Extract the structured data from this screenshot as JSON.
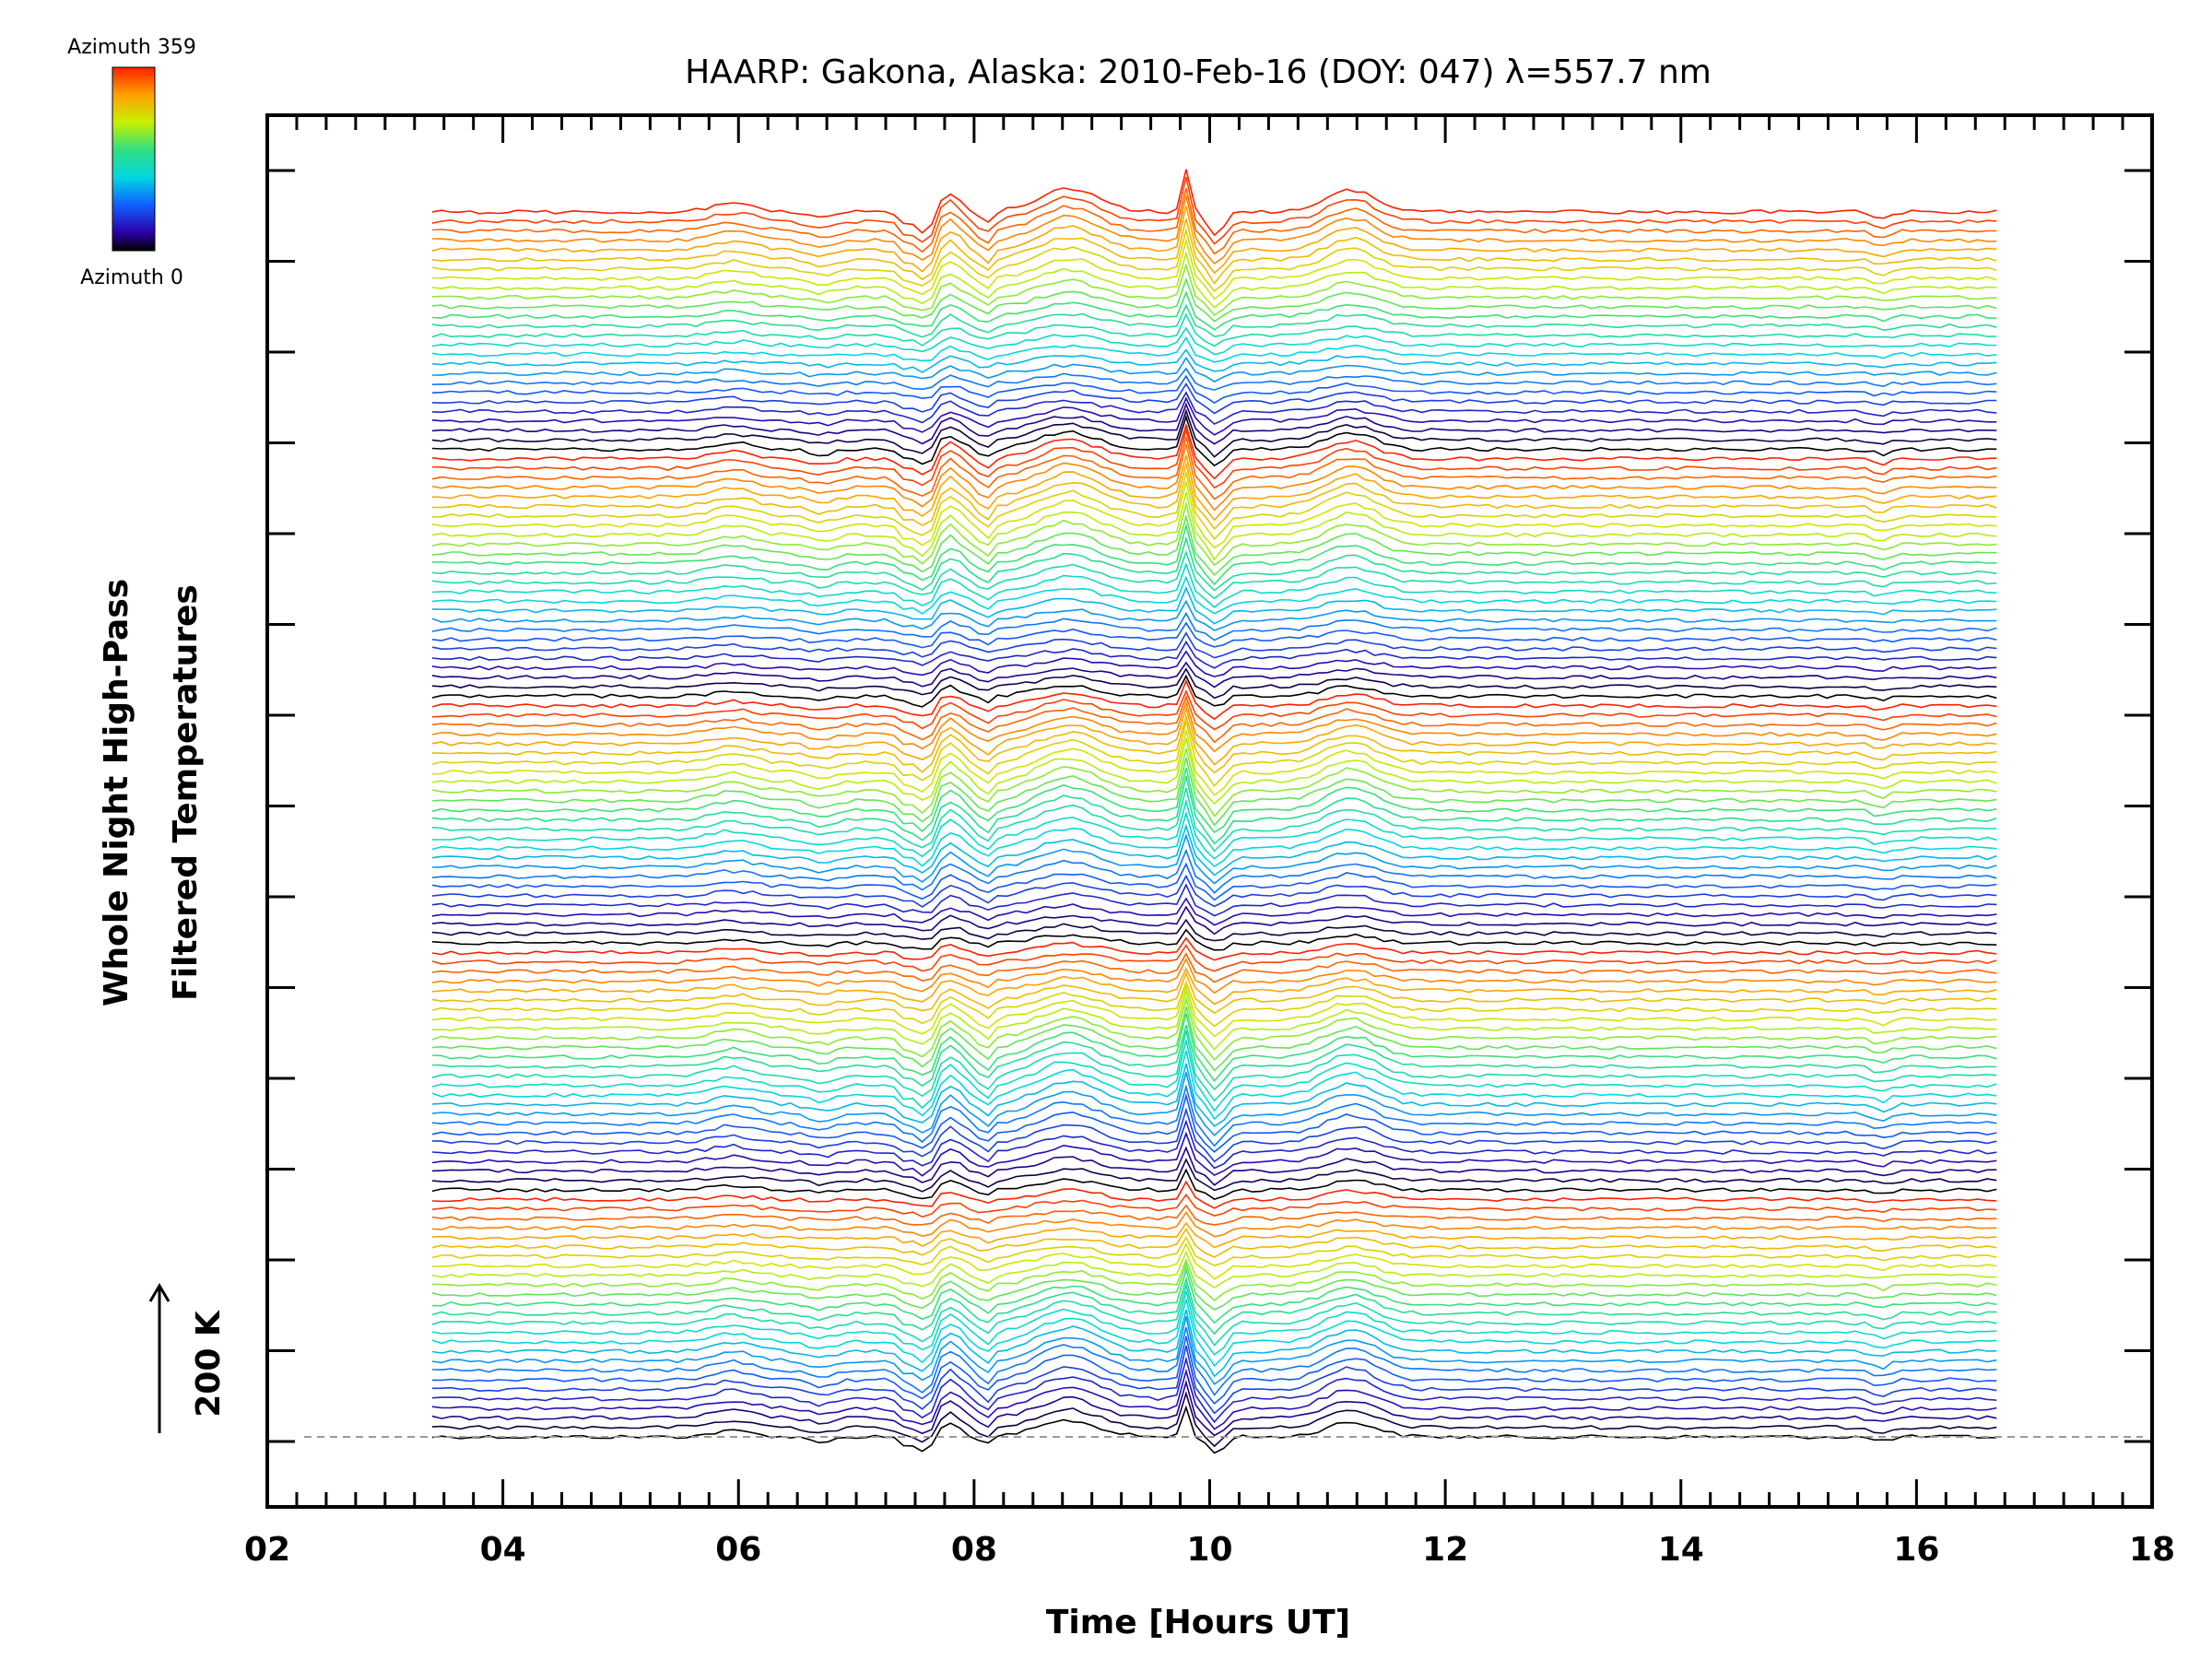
{
  "chart_data": {
    "type": "line",
    "title": "HAARP: Gakona,  Alaska: 2010-Feb-16 (DOY: 047) λ=557.7 nm",
    "xlabel": "Time [Hours UT]",
    "ylabel_line1": "Whole Night High-Pass",
    "ylabel_line2": "Filtered Temperatures",
    "xlim": [
      2,
      18
    ],
    "x_ticks": [
      "02",
      "04",
      "06",
      "08",
      "10",
      "12",
      "14",
      "16",
      "18"
    ],
    "scale_bar_label": "200 K",
    "colorbar": {
      "top_label": "Azimuth 359",
      "bottom_label": "Azimuth 0",
      "colormap": "rainbow"
    },
    "time_range": [
      3.4,
      16.7
    ],
    "n_traces": 130,
    "azimuth_cycle": 26,
    "baseline_dashed": true,
    "grid": false,
    "events": [
      {
        "time": 7.45,
        "description": "wave packet onset"
      },
      {
        "time": 7.6,
        "description": "sharp dip"
      },
      {
        "time": 7.8,
        "description": "wave packet"
      },
      {
        "time": 8.8,
        "description": "broad peak"
      },
      {
        "time": 9.8,
        "description": "sharp spike"
      },
      {
        "time": 11.2,
        "description": "secondary peak"
      }
    ]
  },
  "colors": {
    "axis": "#000000",
    "baseline": "#999999"
  }
}
